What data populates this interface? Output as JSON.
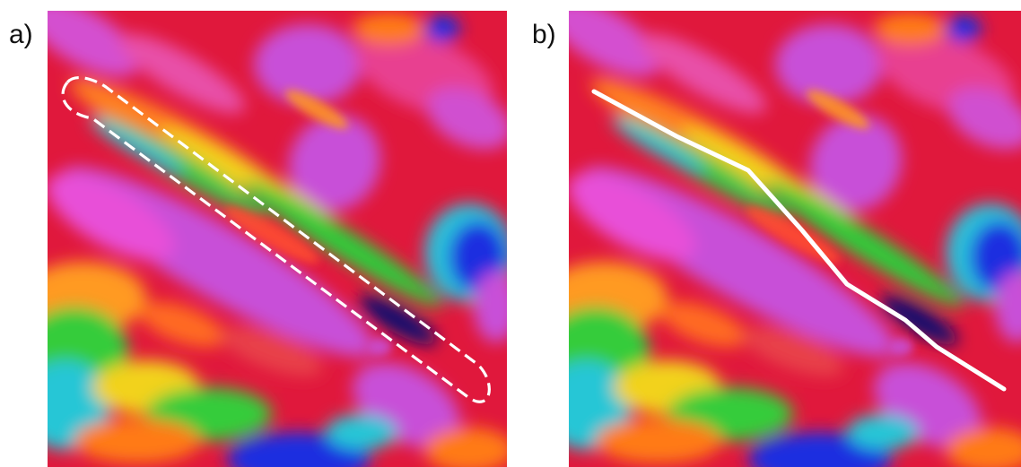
{
  "figure": {
    "panels": [
      {
        "label": "a)",
        "overlay": "dashed-ellipse-outline",
        "overlay_color": "#ffffff"
      },
      {
        "label": "b)",
        "overlay": "solid-line-trace",
        "overlay_color": "#ffffff"
      }
    ]
  },
  "colors": {
    "magenta": "#d04fd0",
    "pink": "#f0389a",
    "red": "#e41a2a",
    "orange": "#ff7a14",
    "yellow": "#f2d21a",
    "green": "#2ecc3a",
    "cyan": "#26c6d6",
    "blue": "#1a2ee0",
    "navy": "#0a1070"
  }
}
